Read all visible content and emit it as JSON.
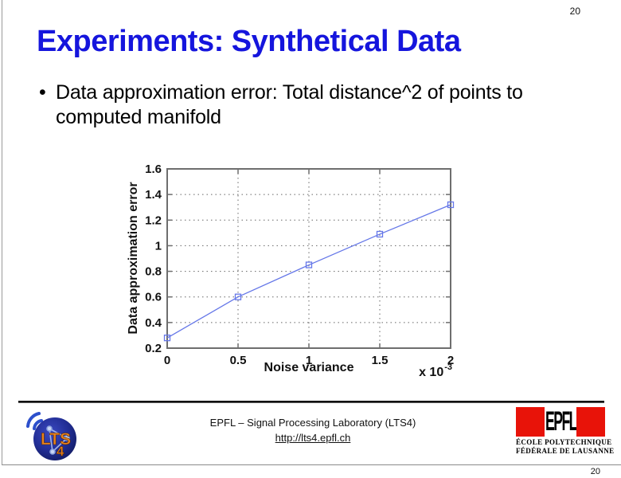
{
  "slide": {
    "number_top": "20",
    "number_bottom": "20",
    "title": "Experiments: Synthetical Data",
    "title_color": "#1515dd",
    "bullet_marker": "•",
    "bullet_text": "Data approximation error: Total distance^2 of points to computed manifold"
  },
  "chart_data": {
    "type": "line",
    "title": "",
    "xlabel": "Noise variance",
    "ylabel": "Data approximation error",
    "x_scale_note": "x 10",
    "x_scale_exponent": "-3",
    "xlim": [
      0,
      2
    ],
    "ylim": [
      0.2,
      1.6
    ],
    "grid": "dotted",
    "legend_position": "none",
    "axis_color": "#6e6e6e",
    "grid_color": "#666666",
    "xticks": [
      {
        "v": 0,
        "label": "0"
      },
      {
        "v": 0.5,
        "label": "0.5"
      },
      {
        "v": 1,
        "label": "1"
      },
      {
        "v": 1.5,
        "label": "1.5"
      },
      {
        "v": 2,
        "label": "2"
      }
    ],
    "yticks": [
      {
        "v": 0.2,
        "label": "0.2"
      },
      {
        "v": 0.4,
        "label": "0.4"
      },
      {
        "v": 0.6,
        "label": "0.6"
      },
      {
        "v": 0.8,
        "label": "0.8"
      },
      {
        "v": 1,
        "label": "1"
      },
      {
        "v": 1.2,
        "label": "1.2"
      },
      {
        "v": 1.4,
        "label": "1.4"
      },
      {
        "v": 1.6,
        "label": "1.6"
      }
    ],
    "series": [
      {
        "name": "Data approximation error vs noise variance",
        "color": "#6577e8",
        "marker": "open-square",
        "x": [
          0,
          0.5,
          1,
          1.5,
          2
        ],
        "y": [
          0.28,
          0.6,
          0.85,
          1.09,
          1.32
        ]
      }
    ]
  },
  "footer": {
    "lab_text": "EPFL – Signal Processing Laboratory (LTS4)",
    "link_text": "http://lts4.epfl.ch",
    "lts4_logo": {
      "acronym": "LTS",
      "four": "4"
    },
    "epfl_logo": {
      "wordmark": "EPFL",
      "name_line1": "ÉCOLE POLYTECHNIQUE",
      "name_line2": "FÉDÉRALE DE LAUSANNE",
      "brand_red": "#e81309"
    }
  }
}
